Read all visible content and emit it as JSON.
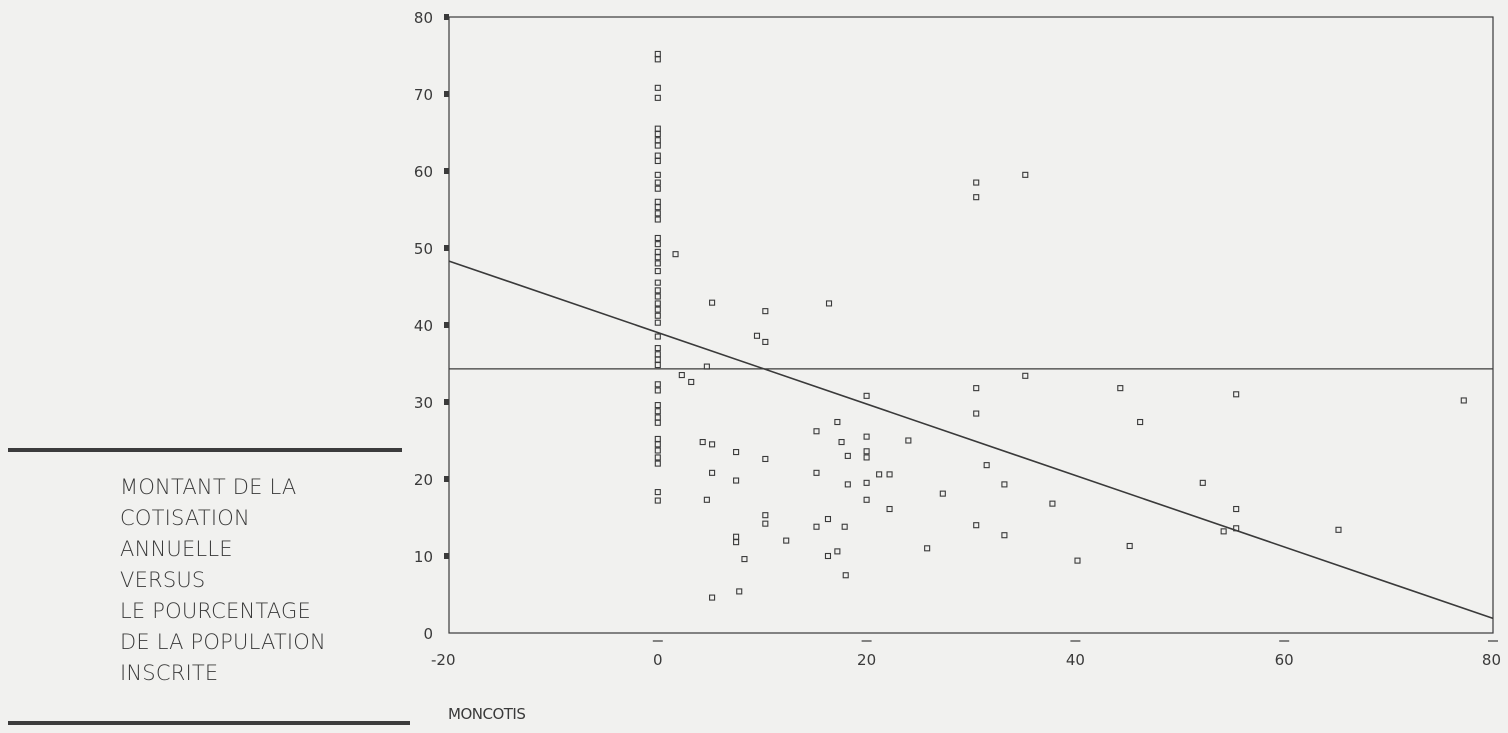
{
  "caption": {
    "lines": [
      "MONTANT DE LA",
      "COTISATION",
      "ANNUELLE",
      "VERSUS",
      "LE POURCENTAGE",
      "DE LA POPULATION",
      "INSCRITE"
    ]
  },
  "chart_data": {
    "type": "scatter",
    "title": "",
    "xlabel": "MONCOTIS",
    "ylabel": "",
    "xlim": [
      -20,
      80
    ],
    "ylim": [
      0,
      80
    ],
    "xticks": [
      -20,
      0,
      20,
      40,
      60,
      80
    ],
    "yticks": [
      0,
      10,
      20,
      30,
      40,
      50,
      60,
      70,
      80
    ],
    "grid": false,
    "legend": "none",
    "colors": {
      "ink": "#3a3a3a",
      "background": "#f1f1ef"
    },
    "mean_line_y": 34.3,
    "regression_line": {
      "x": [
        -20,
        80
      ],
      "y": [
        48.3,
        1.9
      ]
    },
    "series": [
      {
        "points": [
          [
            0,
            75.2
          ],
          [
            0,
            74.5
          ],
          [
            0,
            70.8
          ],
          [
            0,
            69.5
          ],
          [
            0,
            65.5
          ],
          [
            0,
            64.8
          ],
          [
            0,
            64.0
          ],
          [
            0,
            63.3
          ],
          [
            0,
            62.0
          ],
          [
            0,
            61.3
          ],
          [
            0,
            59.5
          ],
          [
            0,
            58.5
          ],
          [
            0,
            57.7
          ],
          [
            0,
            56.0
          ],
          [
            0,
            55.3
          ],
          [
            0,
            54.5
          ],
          [
            0,
            53.7
          ],
          [
            0,
            51.3
          ],
          [
            0,
            50.5
          ],
          [
            0,
            49.5
          ],
          [
            0,
            48.8
          ],
          [
            0,
            48.0
          ],
          [
            0,
            47.0
          ],
          [
            0,
            45.5
          ],
          [
            0,
            44.5
          ],
          [
            0,
            43.7
          ],
          [
            0,
            42.8
          ],
          [
            0,
            42.0
          ],
          [
            0,
            41.2
          ],
          [
            0,
            40.3
          ],
          [
            0,
            38.5
          ],
          [
            0,
            37.0
          ],
          [
            0,
            36.2
          ],
          [
            0,
            35.5
          ],
          [
            0,
            34.8
          ],
          [
            0,
            32.3
          ],
          [
            0,
            31.5
          ],
          [
            0,
            29.6
          ],
          [
            0,
            28.8
          ],
          [
            0,
            28.0
          ],
          [
            0,
            27.3
          ],
          [
            0,
            25.2
          ],
          [
            0,
            24.5
          ],
          [
            0,
            23.7
          ],
          [
            0,
            22.8
          ],
          [
            0,
            22.0
          ],
          [
            0,
            18.3
          ],
          [
            0,
            17.2
          ],
          [
            1.7,
            49.2
          ],
          [
            2.3,
            33.5
          ],
          [
            3.2,
            32.6
          ],
          [
            4.3,
            24.8
          ],
          [
            4.7,
            34.6
          ],
          [
            4.7,
            17.3
          ],
          [
            5.2,
            42.9
          ],
          [
            5.2,
            24.5
          ],
          [
            5.2,
            20.8
          ],
          [
            5.2,
            4.6
          ],
          [
            7.5,
            23.5
          ],
          [
            7.5,
            19.8
          ],
          [
            7.5,
            12.5
          ],
          [
            7.5,
            11.8
          ],
          [
            7.8,
            5.4
          ],
          [
            8.3,
            9.6
          ],
          [
            9.5,
            38.6
          ],
          [
            10.3,
            41.8
          ],
          [
            10.3,
            37.8
          ],
          [
            10.3,
            22.6
          ],
          [
            10.3,
            15.3
          ],
          [
            10.3,
            14.2
          ],
          [
            12.3,
            12.0
          ],
          [
            15.2,
            26.2
          ],
          [
            15.2,
            20.8
          ],
          [
            15.2,
            13.8
          ],
          [
            16.4,
            42.8
          ],
          [
            16.3,
            14.8
          ],
          [
            16.3,
            10.0
          ],
          [
            17.2,
            10.6
          ],
          [
            17.2,
            27.4
          ],
          [
            17.6,
            24.8
          ],
          [
            17.9,
            13.8
          ],
          [
            18.0,
            7.5
          ],
          [
            18.2,
            23.0
          ],
          [
            18.2,
            19.3
          ],
          [
            20.0,
            30.8
          ],
          [
            20.0,
            25.5
          ],
          [
            20.0,
            23.6
          ],
          [
            20.0,
            22.8
          ],
          [
            20.0,
            19.5
          ],
          [
            20.0,
            17.3
          ],
          [
            21.2,
            20.6
          ],
          [
            22.2,
            20.6
          ],
          [
            22.2,
            16.1
          ],
          [
            24.0,
            25.0
          ],
          [
            25.8,
            11.0
          ],
          [
            27.3,
            18.1
          ],
          [
            30.5,
            58.5
          ],
          [
            30.5,
            56.6
          ],
          [
            30.5,
            31.8
          ],
          [
            30.5,
            28.5
          ],
          [
            30.5,
            14.0
          ],
          [
            31.5,
            21.8
          ],
          [
            33.2,
            19.3
          ],
          [
            33.2,
            12.7
          ],
          [
            35.2,
            59.5
          ],
          [
            35.2,
            33.4
          ],
          [
            37.8,
            16.8
          ],
          [
            40.2,
            9.4
          ],
          [
            44.3,
            31.8
          ],
          [
            45.2,
            11.3
          ],
          [
            46.2,
            27.4
          ],
          [
            52.2,
            19.5
          ],
          [
            54.2,
            13.2
          ],
          [
            55.4,
            31.0
          ],
          [
            55.4,
            16.1
          ],
          [
            55.4,
            13.6
          ],
          [
            65.2,
            13.4
          ],
          [
            77.2,
            30.2
          ]
        ]
      }
    ]
  }
}
